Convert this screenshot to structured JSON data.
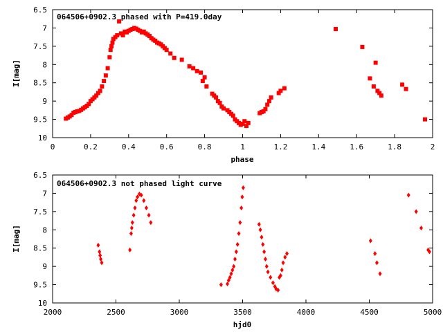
{
  "chart_data": [
    {
      "type": "scatter",
      "title": "064506+0902.3 phased with P=419.0day",
      "xlabel": "phase",
      "ylabel": "I[mag]",
      "xlim": [
        0,
        2
      ],
      "ylim": [
        6.5,
        10
      ],
      "y_inverted": true,
      "grid": false,
      "legend": "none",
      "marker": "filled square",
      "color": "#ff0000",
      "xticks": [
        "0",
        "0.2",
        "0.4",
        "0.6",
        "0.8",
        "1",
        "1.2",
        "1.4",
        "1.6",
        "1.8",
        "2"
      ],
      "yticks": [
        "6.5",
        "7",
        "7.5",
        "8",
        "8.5",
        "9",
        "9.5",
        "10"
      ],
      "points": [
        [
          0.07,
          9.48
        ],
        [
          0.08,
          9.45
        ],
        [
          0.09,
          9.42
        ],
        [
          0.1,
          9.38
        ],
        [
          0.11,
          9.32
        ],
        [
          0.12,
          9.3
        ],
        [
          0.13,
          9.28
        ],
        [
          0.14,
          9.27
        ],
        [
          0.15,
          9.24
        ],
        [
          0.16,
          9.2
        ],
        [
          0.17,
          9.17
        ],
        [
          0.18,
          9.13
        ],
        [
          0.19,
          9.08
        ],
        [
          0.2,
          9.0
        ],
        [
          0.21,
          8.95
        ],
        [
          0.22,
          8.9
        ],
        [
          0.23,
          8.85
        ],
        [
          0.24,
          8.78
        ],
        [
          0.25,
          8.72
        ],
        [
          0.26,
          8.6
        ],
        [
          0.27,
          8.45
        ],
        [
          0.28,
          8.3
        ],
        [
          0.29,
          8.1
        ],
        [
          0.3,
          7.8
        ],
        [
          0.305,
          7.6
        ],
        [
          0.31,
          7.5
        ],
        [
          0.315,
          7.4
        ],
        [
          0.32,
          7.3
        ],
        [
          0.33,
          7.25
        ],
        [
          0.34,
          7.2
        ],
        [
          0.35,
          6.82
        ],
        [
          0.36,
          7.15
        ],
        [
          0.37,
          7.2
        ],
        [
          0.38,
          7.1
        ],
        [
          0.39,
          7.12
        ],
        [
          0.4,
          7.08
        ],
        [
          0.41,
          7.05
        ],
        [
          0.42,
          7.03
        ],
        [
          0.43,
          7.0
        ],
        [
          0.44,
          7.02
        ],
        [
          0.45,
          7.05
        ],
        [
          0.46,
          7.08
        ],
        [
          0.47,
          7.12
        ],
        [
          0.48,
          7.1
        ],
        [
          0.49,
          7.15
        ],
        [
          0.5,
          7.18
        ],
        [
          0.51,
          7.22
        ],
        [
          0.52,
          7.28
        ],
        [
          0.53,
          7.32
        ],
        [
          0.54,
          7.35
        ],
        [
          0.55,
          7.4
        ],
        [
          0.56,
          7.42
        ],
        [
          0.57,
          7.45
        ],
        [
          0.58,
          7.5
        ],
        [
          0.59,
          7.55
        ],
        [
          0.6,
          7.6
        ],
        [
          0.62,
          7.7
        ],
        [
          0.64,
          7.82
        ],
        [
          0.68,
          7.87
        ],
        [
          0.72,
          8.05
        ],
        [
          0.74,
          8.1
        ],
        [
          0.76,
          8.18
        ],
        [
          0.78,
          8.22
        ],
        [
          0.79,
          8.45
        ],
        [
          0.8,
          8.35
        ],
        [
          0.81,
          8.6
        ],
        [
          0.84,
          8.8
        ],
        [
          0.85,
          8.85
        ],
        [
          0.86,
          8.9
        ],
        [
          0.87,
          9.0
        ],
        [
          0.88,
          9.05
        ],
        [
          0.89,
          9.15
        ],
        [
          0.9,
          9.2
        ],
        [
          0.92,
          9.25
        ],
        [
          0.93,
          9.3
        ],
        [
          0.94,
          9.35
        ],
        [
          0.95,
          9.4
        ],
        [
          0.96,
          9.5
        ],
        [
          0.97,
          9.55
        ],
        [
          0.98,
          9.6
        ],
        [
          0.99,
          9.65
        ],
        [
          1.0,
          9.62
        ],
        [
          1.01,
          9.55
        ],
        [
          1.02,
          9.68
        ],
        [
          1.03,
          9.6
        ],
        [
          1.09,
          9.33
        ],
        [
          1.1,
          9.3
        ],
        [
          1.11,
          9.28
        ],
        [
          1.12,
          9.22
        ],
        [
          1.13,
          9.1
        ],
        [
          1.14,
          9.0
        ],
        [
          1.15,
          8.9
        ],
        [
          1.19,
          8.78
        ],
        [
          1.2,
          8.72
        ],
        [
          1.22,
          8.65
        ],
        [
          1.49,
          7.03
        ],
        [
          1.63,
          7.52
        ],
        [
          1.67,
          8.38
        ],
        [
          1.69,
          8.6
        ],
        [
          1.7,
          7.95
        ],
        [
          1.71,
          8.72
        ],
        [
          1.72,
          8.78
        ],
        [
          1.73,
          8.85
        ],
        [
          1.84,
          8.55
        ],
        [
          1.86,
          8.67
        ],
        [
          1.96,
          9.5
        ]
      ]
    },
    {
      "type": "scatter",
      "title": "064506+0902.3 not phased light curve",
      "xlabel": "hjd0",
      "ylabel": "I[mag]",
      "xlim": [
        2000,
        5000
      ],
      "ylim": [
        6.5,
        10
      ],
      "y_inverted": true,
      "grid": false,
      "legend": "none",
      "marker": "filled diamond",
      "color": "#ff0000",
      "xticks": [
        "2000",
        "2500",
        "3000",
        "3500",
        "4000",
        "4500",
        "5000"
      ],
      "yticks": [
        "6.5",
        "7",
        "7.5",
        "8",
        "8.5",
        "9",
        "9.5",
        "10"
      ],
      "points": [
        [
          2360,
          8.42
        ],
        [
          2370,
          8.6
        ],
        [
          2375,
          8.7
        ],
        [
          2380,
          8.8
        ],
        [
          2388,
          8.9
        ],
        [
          2610,
          8.55
        ],
        [
          2620,
          8.1
        ],
        [
          2625,
          7.95
        ],
        [
          2630,
          7.8
        ],
        [
          2640,
          7.6
        ],
        [
          2650,
          7.4
        ],
        [
          2660,
          7.2
        ],
        [
          2670,
          7.1
        ],
        [
          2685,
          7.02
        ],
        [
          2700,
          7.05
        ],
        [
          2720,
          7.2
        ],
        [
          2740,
          7.4
        ],
        [
          2760,
          7.6
        ],
        [
          2775,
          7.8
        ],
        [
          3330,
          9.5
        ],
        [
          3380,
          9.48
        ],
        [
          3390,
          9.38
        ],
        [
          3400,
          9.3
        ],
        [
          3410,
          9.2
        ],
        [
          3420,
          9.1
        ],
        [
          3430,
          9.0
        ],
        [
          3440,
          8.8
        ],
        [
          3450,
          8.6
        ],
        [
          3460,
          8.4
        ],
        [
          3470,
          8.1
        ],
        [
          3480,
          7.8
        ],
        [
          3490,
          7.4
        ],
        [
          3497,
          7.1
        ],
        [
          3505,
          6.85
        ],
        [
          3630,
          7.85
        ],
        [
          3640,
          8.0
        ],
        [
          3650,
          8.2
        ],
        [
          3660,
          8.4
        ],
        [
          3670,
          8.6
        ],
        [
          3680,
          8.8
        ],
        [
          3690,
          9.0
        ],
        [
          3700,
          9.15
        ],
        [
          3720,
          9.3
        ],
        [
          3740,
          9.45
        ],
        [
          3755,
          9.55
        ],
        [
          3765,
          9.62
        ],
        [
          3780,
          9.65
        ],
        [
          3790,
          9.3
        ],
        [
          3800,
          9.25
        ],
        [
          3810,
          9.1
        ],
        [
          3820,
          8.9
        ],
        [
          3835,
          8.75
        ],
        [
          3850,
          8.65
        ],
        [
          4510,
          8.3
        ],
        [
          4545,
          8.65
        ],
        [
          4560,
          8.9
        ],
        [
          4585,
          9.2
        ],
        [
          4810,
          7.05
        ],
        [
          4870,
          7.5
        ],
        [
          4910,
          7.95
        ],
        [
          4965,
          8.55
        ],
        [
          4975,
          8.6
        ]
      ]
    }
  ]
}
